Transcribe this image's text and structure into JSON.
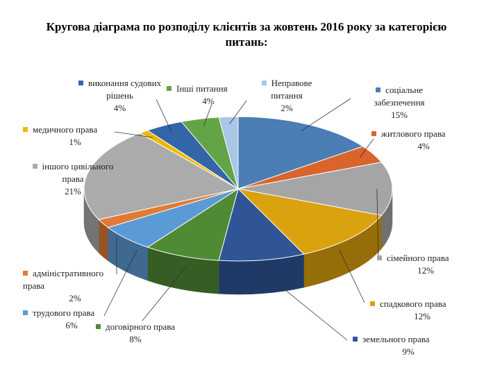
{
  "chart_data": {
    "type": "pie3d",
    "title": "Кругова діаграма по розподілу клієнтів за жовтень 2016 року за категорією питань:",
    "categories": [
      "соціальне забезпечення",
      "житлового права",
      "сімейного права",
      "спадкового права",
      "земельного права",
      "договірного права",
      "трудового права",
      "адміністративного права",
      "іншого цивільного права",
      "медичного права",
      "виконання судових рішень",
      "Інші питання",
      "Неправове питання"
    ],
    "values": [
      15,
      4,
      12,
      12,
      9,
      8,
      6,
      2,
      21,
      1,
      4,
      4,
      2
    ],
    "value_labels": [
      "15%",
      "4%",
      "12%",
      "12%",
      "9%",
      "8%",
      "6%",
      "2%",
      "21%",
      "1%",
      "4%",
      "4%",
      "2%"
    ],
    "colors": [
      "#4a7eb4",
      "#d9642c",
      "#a5a5a5",
      "#dba20f",
      "#2f5597",
      "#4f8a35",
      "#5b9bd5",
      "#e07a36",
      "#ababab",
      "#f0b800",
      "#3465a8",
      "#62a446",
      "#a9c6e6"
    ]
  }
}
